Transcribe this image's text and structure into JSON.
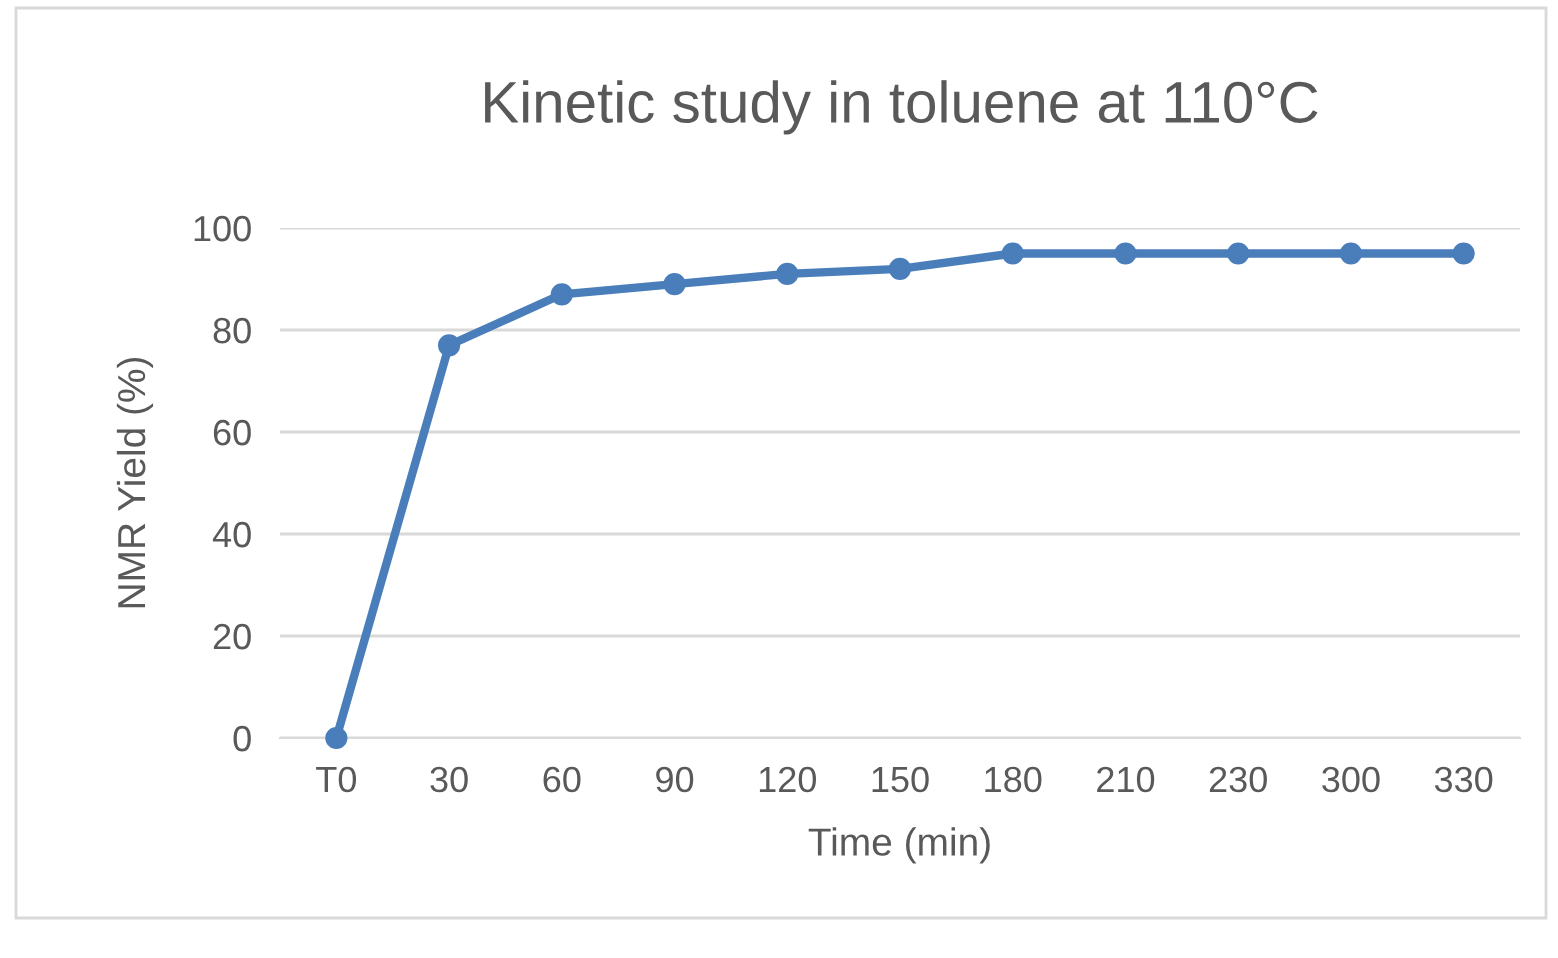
{
  "chart_data": {
    "type": "line",
    "title": "Kinetic study in toluene at 110°C",
    "xlabel": "Time (min)",
    "ylabel": "NMR Yield (%)",
    "categories": [
      "T0",
      "30",
      "60",
      "90",
      "120",
      "150",
      "180",
      "210",
      "230",
      "300",
      "330"
    ],
    "series": [
      {
        "color": "#4a7ebb",
        "values": [
          0,
          77,
          87,
          89,
          91,
          92,
          95,
          95,
          95,
          95,
          95
        ]
      }
    ],
    "ylim": [
      0,
      100
    ],
    "yticks": [
      0,
      20,
      40,
      60,
      80,
      100
    ],
    "grid": "y",
    "legend": false,
    "marker": "circle",
    "line_style": "solid"
  }
}
